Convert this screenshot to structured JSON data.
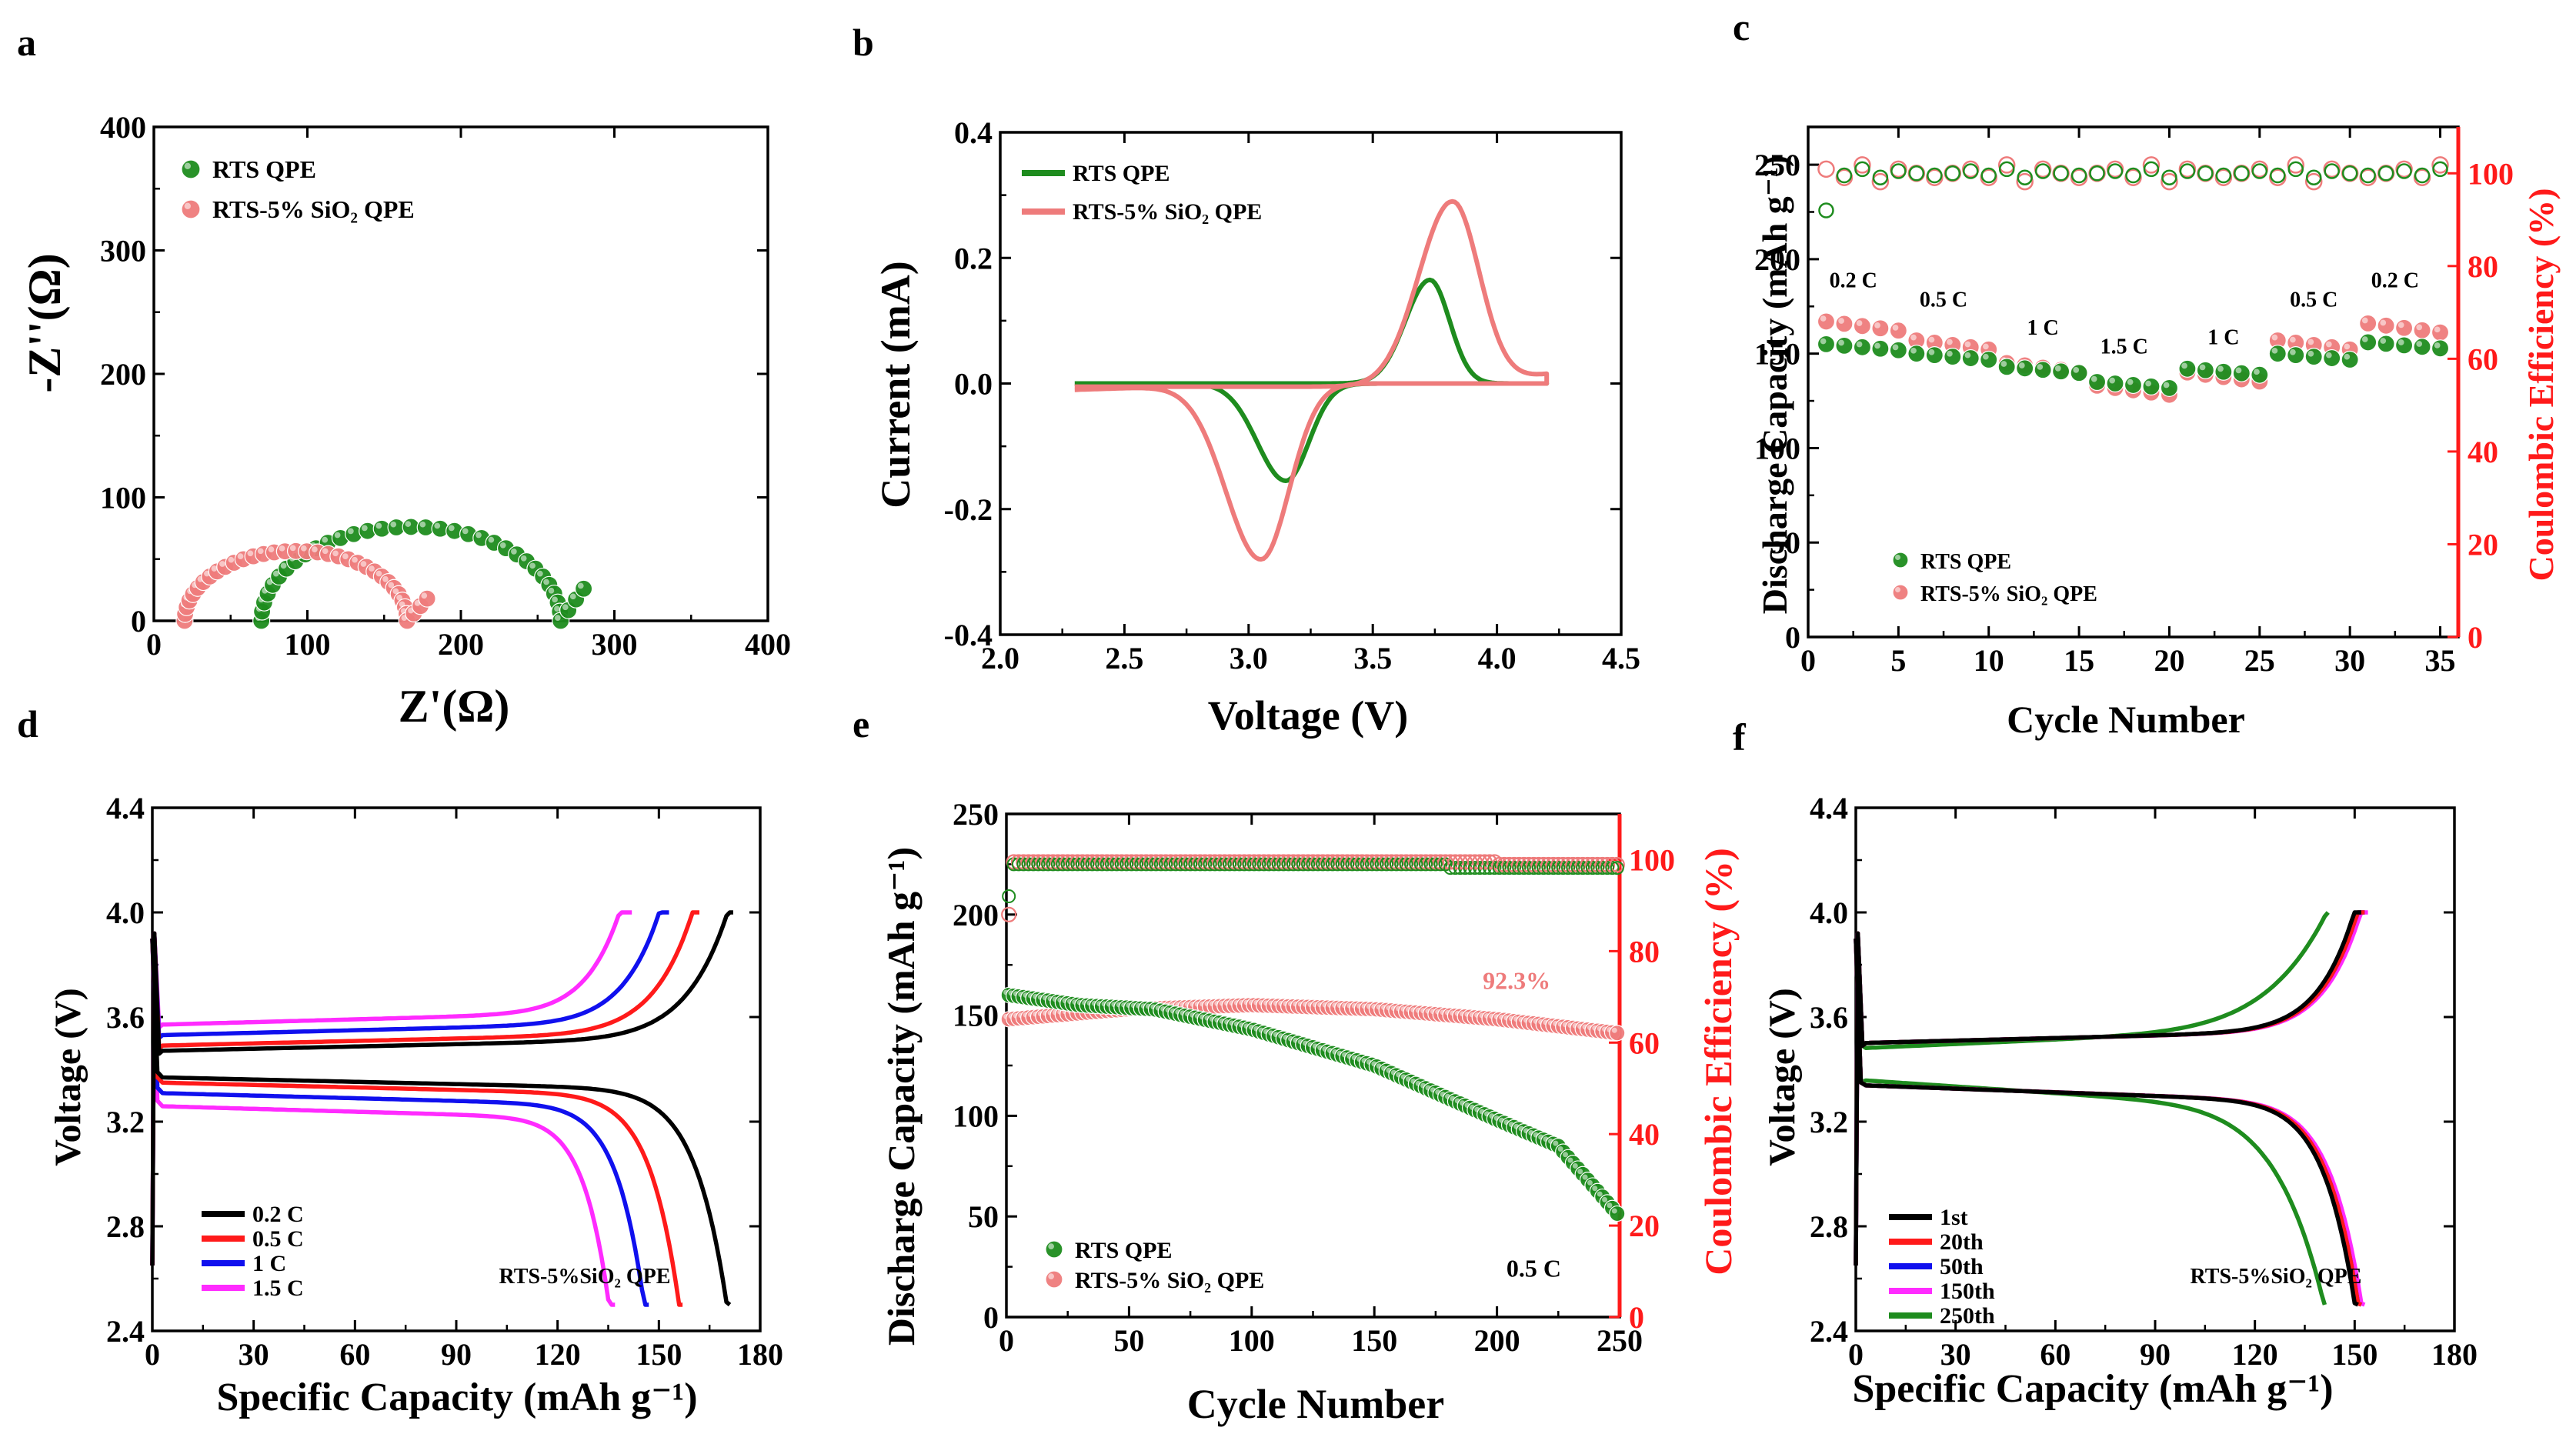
{
  "colors": {
    "green": "#1e8c1e",
    "green_light": "#7fcf6a",
    "pink": "#ee7b7b",
    "red": "#ff1a1a",
    "blue": "#1010ee",
    "magenta": "#ff2bff",
    "black": "#000000"
  },
  "chart_data": [
    {
      "panel": "a",
      "type": "scatter",
      "xlabel": "Z'(Ω)",
      "ylabel": "-Z''(Ω)",
      "xlim": [
        0,
        400
      ],
      "ylim": [
        0,
        400
      ],
      "xticks": [
        "0",
        "100",
        "200",
        "300",
        "400"
      ],
      "yticks": [
        "0",
        "100",
        "200",
        "300",
        "400"
      ],
      "legend": [
        "RTS QPE",
        "RTS-5% SiO2 QPE"
      ],
      "series": [
        {
          "name": "RTS QPE",
          "color": "#1e8c1e",
          "shape": "semicircle",
          "r_start": 70,
          "r_end": 265,
          "tail_end": [
            280,
            26
          ]
        },
        {
          "name": "RTS-5% SiO2 QPE",
          "color": "#ee7b7b",
          "shape": "semicircle",
          "r_start": 20,
          "r_end": 165,
          "tail_end": [
            178,
            18
          ]
        }
      ]
    },
    {
      "panel": "b",
      "type": "line",
      "xlabel": "Voltage (V)",
      "ylabel": "Current (mA)",
      "xlim": [
        2.0,
        4.5
      ],
      "ylim": [
        -0.4,
        0.4
      ],
      "xticks": [
        "2.0",
        "2.5",
        "3.0",
        "3.5",
        "4.0",
        "4.5"
      ],
      "yticks": [
        "-0.4",
        "-0.2",
        "0.0",
        "0.2",
        "0.4"
      ],
      "legend": [
        "RTS QPE",
        "RTS-5% SiO2 QPE"
      ],
      "series": [
        {
          "name": "RTS QPE",
          "color": "#1e8c1e",
          "anodic_peak": [
            3.73,
            0.165
          ],
          "cathodic_peak": [
            3.15,
            -0.155
          ],
          "v_range": [
            2.3,
            4.2
          ]
        },
        {
          "name": "RTS-5% SiO2 QPE",
          "color": "#ee7b7b",
          "anodic_peak": [
            3.82,
            0.295
          ],
          "cathodic_peak": [
            3.05,
            -0.28
          ],
          "v_range": [
            2.3,
            4.2
          ]
        }
      ]
    },
    {
      "panel": "c",
      "type": "scatter",
      "xlabel": "Cycle Number",
      "ylabel": "Discharge Capacity (mAh g⁻¹)",
      "y2label": "Coulombic Efficiency (%)",
      "xlim": [
        0,
        36
      ],
      "ylim": [
        0,
        270
      ],
      "y2lim": [
        0,
        110
      ],
      "xticks": [
        "0",
        "5",
        "10",
        "15",
        "20",
        "25",
        "30",
        "35"
      ],
      "yticks": [
        "0",
        "50",
        "100",
        "150",
        "200",
        "250"
      ],
      "y2ticks": [
        "0",
        "20",
        "40",
        "60",
        "80",
        "100"
      ],
      "legend": [
        "RTS QPE",
        "RTS-5% SiO2 QPE"
      ],
      "rate_labels": [
        "0.2 C",
        "0.5 C",
        "1 C",
        "1.5 C",
        "1 C",
        "0.5 C",
        "0.2 C"
      ],
      "rates_capacity_rts": [
        155,
        150,
        143,
        135,
        142,
        150,
        156
      ],
      "rates_capacity_sio2": [
        167,
        157,
        145,
        133,
        140,
        157,
        166
      ],
      "ce_rts": 100,
      "ce_sio2": 100
    },
    {
      "panel": "d",
      "type": "line",
      "xlabel": "Specific Capacity (mAh g⁻¹)",
      "ylabel": "Voltage (V)",
      "xlim": [
        0,
        180
      ],
      "ylim": [
        2.4,
        4.4
      ],
      "xticks": [
        "0",
        "30",
        "60",
        "90",
        "120",
        "150",
        "180"
      ],
      "yticks": [
        "2.4",
        "2.8",
        "3.2",
        "3.6",
        "4.0",
        "4.4"
      ],
      "legend": [
        "0.2 C",
        "0.5 C",
        "1 C",
        "1.5 C"
      ],
      "caption": "RTS-5%SiO2 QPE",
      "series": [
        {
          "name": "0.2 C",
          "color": "#000000",
          "charge_cap": 172,
          "discharge_cap": 171,
          "charge_plateau": 3.47,
          "discharge_plateau": 3.37
        },
        {
          "name": "0.5 C",
          "color": "#ff1a1a",
          "charge_cap": 162,
          "discharge_cap": 157,
          "charge_plateau": 3.49,
          "discharge_plateau": 3.35
        },
        {
          "name": "1 C",
          "color": "#1010ee",
          "charge_cap": 153,
          "discharge_cap": 147,
          "charge_plateau": 3.53,
          "discharge_plateau": 3.31
        },
        {
          "name": "1.5 C",
          "color": "#ff2bff",
          "charge_cap": 142,
          "discharge_cap": 137,
          "charge_plateau": 3.57,
          "discharge_plateau": 3.26
        }
      ]
    },
    {
      "panel": "e",
      "type": "scatter",
      "xlabel": "Cycle Number",
      "ylabel": "Discharge Capacity (mAh g⁻¹)",
      "y2label": "Coulombic Efficiency (%)",
      "xlim": [
        0,
        250
      ],
      "ylim": [
        0,
        250
      ],
      "y2lim": [
        0,
        110
      ],
      "xticks": [
        "0",
        "50",
        "100",
        "150",
        "200",
        "250"
      ],
      "yticks": [
        "0",
        "50",
        "100",
        "150",
        "200",
        "250"
      ],
      "y2ticks": [
        "0",
        "20",
        "40",
        "60",
        "80",
        "100"
      ],
      "legend": [
        "RTS QPE",
        "RTS-5% SiO2 QPE"
      ],
      "annotations": [
        "92.3%",
        "0.5 C"
      ],
      "series": [
        {
          "name": "RTS QPE",
          "color": "#1e8c1e",
          "capacity_points": [
            [
              1,
              160
            ],
            [
              30,
              155
            ],
            [
              60,
              153
            ],
            [
              100,
              143
            ],
            [
              150,
              125
            ],
            [
              200,
              98
            ],
            [
              225,
              85
            ],
            [
              250,
              50
            ]
          ]
        },
        {
          "name": "RTS-5% SiO2 QPE",
          "color": "#ee7b7b",
          "capacity_points": [
            [
              1,
              148
            ],
            [
              50,
              153
            ],
            [
              100,
              155
            ],
            [
              150,
              153
            ],
            [
              200,
              148
            ],
            [
              250,
              141
            ]
          ]
        }
      ]
    },
    {
      "panel": "f",
      "type": "line",
      "xlabel": "Specific Capacity (mAh g⁻¹)",
      "ylabel": "Voltage (V)",
      "xlim": [
        0,
        180
      ],
      "ylim": [
        2.4,
        4.4
      ],
      "xticks": [
        "0",
        "30",
        "60",
        "90",
        "120",
        "150",
        "180"
      ],
      "yticks": [
        "2.4",
        "2.8",
        "3.2",
        "3.6",
        "4.0",
        "4.4"
      ],
      "legend": [
        "1st",
        "20th",
        "50th",
        "150th",
        "250th"
      ],
      "caption": "RTS-5%SiO2 QPE",
      "series": [
        {
          "name": "1st",
          "color": "#000000",
          "charge_cap": 152,
          "discharge_cap": 151
        },
        {
          "name": "20th",
          "color": "#ff1a1a",
          "charge_cap": 153,
          "discharge_cap": 152
        },
        {
          "name": "50th",
          "color": "#1010ee",
          "charge_cap": 153,
          "discharge_cap": 152
        },
        {
          "name": "150th",
          "color": "#ff2bff",
          "charge_cap": 154,
          "discharge_cap": 153
        },
        {
          "name": "250th",
          "color": "#1e8c1e",
          "charge_cap": 142,
          "discharge_cap": 141
        }
      ]
    }
  ]
}
